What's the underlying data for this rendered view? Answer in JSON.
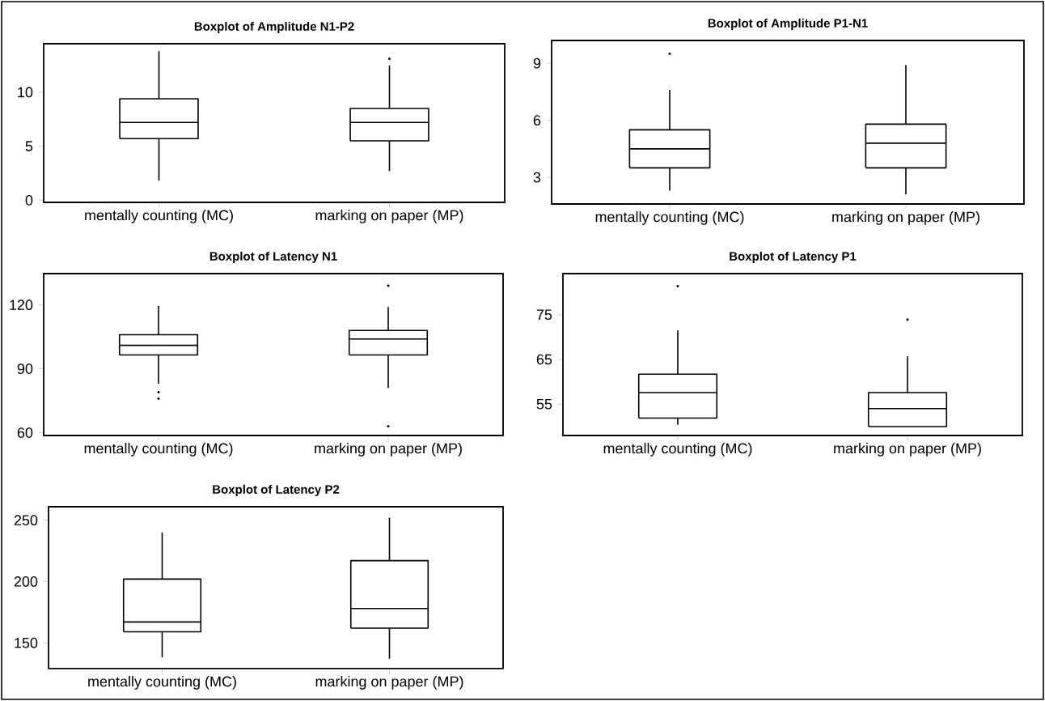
{
  "chart_data": [
    {
      "type": "box",
      "title": "Boxplot of Amplitude N1-P2",
      "categories": [
        "mentally counting (MC)",
        "marking on paper (MP)"
      ],
      "ylim": [
        -0.2,
        14.5
      ],
      "yticks": [
        0,
        5,
        10
      ],
      "boxes": [
        {
          "low": 1.8,
          "q1": 5.7,
          "median": 7.2,
          "q3": 9.4,
          "high": 13.8
        },
        {
          "low": 2.7,
          "q1": 5.5,
          "median": 7.2,
          "q3": 8.5,
          "high": 12.5,
          "outliers": [
            13.1
          ]
        }
      ]
    },
    {
      "type": "box",
      "title": "Boxplot of Amplitude P1-N1",
      "categories": [
        "mentally counting (MC)",
        "marking on paper (MP)"
      ],
      "ylim": [
        1.6,
        10.2
      ],
      "yticks": [
        3,
        6,
        9
      ],
      "boxes": [
        {
          "low": 2.3,
          "q1": 3.5,
          "median": 4.5,
          "q3": 5.5,
          "high": 7.6,
          "outliers": [
            9.5
          ]
        },
        {
          "low": 2.1,
          "q1": 3.5,
          "median": 4.8,
          "q3": 5.8,
          "high": 8.9
        }
      ]
    },
    {
      "type": "box",
      "title": "Boxplot of Latency N1",
      "categories": [
        "mentally counting (MC)",
        "marking on paper (MP)"
      ],
      "ylim": [
        58.7,
        134.7
      ],
      "yticks": [
        60,
        90,
        120
      ],
      "boxes": [
        {
          "low": 83,
          "q1": 96.5,
          "median": 101,
          "q3": 106,
          "high": 119.5,
          "outliers": [
            79,
            76
          ]
        },
        {
          "low": 81,
          "q1": 96.5,
          "median": 104,
          "q3": 108,
          "high": 119,
          "outliers": [
            129,
            63
          ]
        }
      ]
    },
    {
      "type": "box",
      "title": "Boxplot of Latency P1",
      "categories": [
        "mentally counting (MC)",
        "marking on paper (MP)"
      ],
      "ylim": [
        48,
        84.2
      ],
      "yticks": [
        55,
        65,
        75
      ],
      "boxes": [
        {
          "low": 50.4,
          "q1": 51.9,
          "median": 57.6,
          "q3": 61.7,
          "high": 71.5,
          "outliers": [
            81.4
          ]
        },
        {
          "low": 50,
          "q1": 50,
          "median": 54,
          "q3": 57.6,
          "high": 65.7,
          "outliers": [
            73.9
          ]
        }
      ]
    },
    {
      "type": "box",
      "title": "Boxplot of Latency P2",
      "categories": [
        "mentally counting (MC)",
        "marking on paper (MP)"
      ],
      "ylim": [
        129,
        261
      ],
      "yticks": [
        150,
        200,
        250
      ],
      "boxes": [
        {
          "low": 138,
          "q1": 159,
          "median": 167,
          "q3": 202,
          "high": 240
        },
        {
          "low": 137,
          "q1": 162,
          "median": 178,
          "q3": 217,
          "high": 252
        }
      ]
    }
  ]
}
